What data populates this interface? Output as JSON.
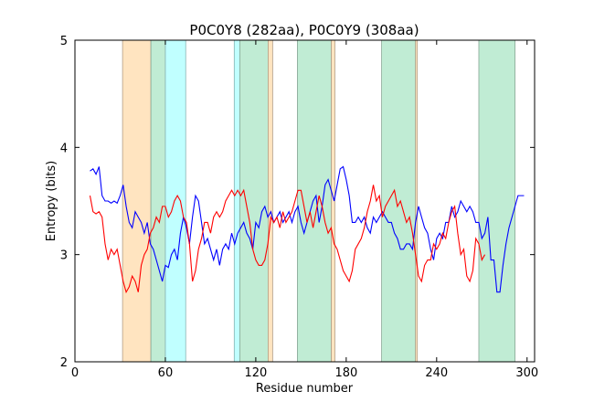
{
  "chart_data": {
    "type": "line",
    "title": "P0C0Y8 (282aa), P0C0Y9 (308aa)",
    "x_label": "Residue number",
    "y_label": "Entropy (bits)",
    "xlim": [
      0,
      305
    ],
    "xticks": [
      0,
      60,
      120,
      180,
      240,
      300
    ],
    "ylim": [
      2,
      5
    ],
    "yticks": [
      2,
      3,
      4,
      5
    ],
    "spans": [
      {
        "start": 31.6,
        "end": 50.4,
        "color": "#ffe4c0"
      },
      {
        "start": 50.4,
        "end": 60,
        "color": "#c0ecd4"
      },
      {
        "start": 60,
        "end": 73.5,
        "color": "#c0ffff"
      },
      {
        "start": 105.7,
        "end": 109.4,
        "color": "#c0ffff"
      },
      {
        "start": 109.4,
        "end": 128.2,
        "color": "#c0ecd4"
      },
      {
        "start": 128.2,
        "end": 131.2,
        "color": "#ffe4c0"
      },
      {
        "start": 147.6,
        "end": 170.1,
        "color": "#c0ecd4"
      },
      {
        "start": 170.1,
        "end": 172.5,
        "color": "#ffe4c0"
      },
      {
        "start": 203.5,
        "end": 226,
        "color": "#c0ecd4"
      },
      {
        "start": 226,
        "end": 227.2,
        "color": "#ffe4c0"
      },
      {
        "start": 268,
        "end": 292,
        "color": "#c0ecd4"
      }
    ],
    "series": [
      {
        "color": "#0000ff",
        "x": [
          10,
          12,
          14,
          16,
          18,
          20,
          22,
          24,
          26,
          28,
          30,
          32,
          34,
          36,
          38,
          40,
          42,
          44,
          46,
          48,
          50,
          52,
          54,
          56,
          58,
          60,
          62,
          64,
          66,
          68,
          70,
          72,
          74,
          76,
          78,
          80,
          82,
          84,
          86,
          88,
          90,
          92,
          94,
          96,
          98,
          100,
          102,
          104,
          106,
          108,
          110,
          112,
          114,
          116,
          118,
          120,
          122,
          124,
          126,
          128,
          130,
          132,
          134,
          136,
          138,
          140,
          142,
          144,
          146,
          148,
          150,
          152,
          154,
          156,
          158,
          160,
          162,
          164,
          166,
          168,
          170,
          172,
          174,
          176,
          178,
          180,
          182,
          184,
          186,
          188,
          190,
          192,
          194,
          196,
          198,
          200,
          202,
          204,
          206,
          208,
          210,
          212,
          214,
          216,
          218,
          220,
          222,
          224,
          226,
          228,
          230,
          232,
          234,
          236,
          238,
          240,
          242,
          244,
          246,
          248,
          250,
          252,
          254,
          256,
          258,
          260,
          262,
          264,
          266,
          268,
          270,
          272,
          274,
          276,
          278,
          280,
          282,
          284,
          286,
          288,
          290,
          292,
          294,
          296,
          298
        ],
        "values": [
          3.78,
          3.8,
          3.75,
          3.82,
          3.55,
          3.5,
          3.5,
          3.48,
          3.5,
          3.48,
          3.55,
          3.65,
          3.45,
          3.3,
          3.25,
          3.4,
          3.35,
          3.3,
          3.2,
          3.3,
          3.1,
          3.05,
          2.95,
          2.85,
          2.75,
          2.9,
          2.88,
          3.0,
          3.05,
          2.95,
          3.2,
          3.35,
          3.25,
          3.1,
          3.35,
          3.55,
          3.5,
          3.3,
          3.1,
          3.15,
          3.05,
          2.95,
          3.05,
          2.9,
          3.05,
          3.1,
          3.05,
          3.2,
          3.1,
          3.2,
          3.25,
          3.3,
          3.2,
          3.15,
          3.05,
          3.3,
          3.25,
          3.4,
          3.45,
          3.35,
          3.4,
          3.3,
          3.35,
          3.4,
          3.3,
          3.35,
          3.4,
          3.3,
          3.4,
          3.45,
          3.3,
          3.2,
          3.3,
          3.4,
          3.5,
          3.55,
          3.3,
          3.45,
          3.65,
          3.7,
          3.6,
          3.5,
          3.65,
          3.8,
          3.82,
          3.7,
          3.55,
          3.3,
          3.3,
          3.35,
          3.3,
          3.35,
          3.25,
          3.2,
          3.35,
          3.3,
          3.35,
          3.4,
          3.35,
          3.3,
          3.3,
          3.2,
          3.15,
          3.05,
          3.05,
          3.1,
          3.1,
          3.05,
          3.3,
          3.45,
          3.35,
          3.25,
          3.2,
          3.05,
          2.95,
          3.15,
          3.2,
          3.15,
          3.3,
          3.3,
          3.45,
          3.35,
          3.4,
          3.5,
          3.45,
          3.4,
          3.45,
          3.4,
          3.3,
          3.3,
          3.15,
          3.2,
          3.35,
          2.95,
          2.95,
          2.65,
          2.65,
          2.9,
          3.1,
          3.25,
          3.35,
          3.45,
          3.55,
          3.55,
          3.55
        ]
      },
      {
        "color": "#ff0000",
        "x": [
          10,
          12,
          14,
          16,
          18,
          20,
          22,
          24,
          26,
          28,
          30,
          32,
          34,
          36,
          38,
          40,
          42,
          44,
          46,
          48,
          50,
          52,
          54,
          56,
          58,
          60,
          62,
          64,
          66,
          68,
          70,
          72,
          74,
          76,
          78,
          80,
          82,
          84,
          86,
          88,
          90,
          92,
          94,
          96,
          98,
          100,
          102,
          104,
          106,
          108,
          110,
          112,
          114,
          116,
          118,
          120,
          122,
          124,
          126,
          128,
          130,
          132,
          134,
          136,
          138,
          140,
          142,
          144,
          146,
          148,
          150,
          152,
          154,
          156,
          158,
          160,
          162,
          164,
          166,
          168,
          170,
          172,
          174,
          176,
          178,
          180,
          182,
          184,
          186,
          188,
          190,
          192,
          194,
          196,
          198,
          200,
          202,
          204,
          206,
          208,
          210,
          212,
          214,
          216,
          218,
          220,
          222,
          224,
          226,
          228,
          230,
          232,
          234,
          236,
          238,
          240,
          242,
          244,
          246,
          248,
          250,
          252,
          254,
          256,
          258,
          260,
          262,
          264,
          266,
          268,
          270,
          272
        ],
        "values": [
          3.55,
          3.4,
          3.38,
          3.4,
          3.35,
          3.1,
          2.95,
          3.05,
          3.0,
          3.05,
          2.9,
          2.75,
          2.65,
          2.7,
          2.8,
          2.75,
          2.65,
          2.9,
          3.0,
          3.05,
          3.2,
          3.25,
          3.35,
          3.3,
          3.45,
          3.45,
          3.35,
          3.4,
          3.5,
          3.55,
          3.5,
          3.35,
          3.3,
          3.1,
          2.75,
          2.85,
          3.05,
          3.15,
          3.3,
          3.3,
          3.2,
          3.35,
          3.4,
          3.35,
          3.4,
          3.5,
          3.55,
          3.6,
          3.55,
          3.6,
          3.55,
          3.6,
          3.45,
          3.3,
          3.05,
          2.95,
          2.9,
          2.9,
          2.95,
          3.1,
          3.35,
          3.3,
          3.35,
          3.25,
          3.4,
          3.3,
          3.35,
          3.4,
          3.5,
          3.6,
          3.6,
          3.45,
          3.3,
          3.4,
          3.25,
          3.4,
          3.55,
          3.45,
          3.3,
          3.2,
          3.25,
          3.1,
          3.05,
          2.95,
          2.85,
          2.8,
          2.75,
          2.85,
          3.05,
          3.1,
          3.15,
          3.25,
          3.4,
          3.5,
          3.65,
          3.5,
          3.55,
          3.35,
          3.45,
          3.5,
          3.55,
          3.6,
          3.45,
          3.5,
          3.4,
          3.3,
          3.35,
          3.2,
          3.0,
          2.8,
          2.75,
          2.9,
          2.95,
          2.95,
          3.1,
          3.05,
          3.1,
          3.2,
          3.15,
          3.3,
          3.4,
          3.45,
          3.2,
          3.0,
          3.05,
          2.8,
          2.75,
          2.85,
          3.15,
          3.1,
          2.95,
          3.0
        ]
      }
    ]
  }
}
